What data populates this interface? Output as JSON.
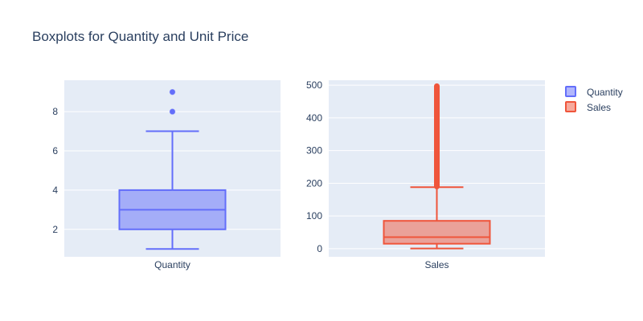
{
  "chart_data": {
    "title": "Boxplots for Quantity and Unit Price",
    "type": "box",
    "legend_position": "top-right",
    "grid": true,
    "colors": {
      "Quantity": "#636efa",
      "Sales": "#ef553b",
      "plot_bg": "#e5ecf6",
      "grid": "#ffffff"
    },
    "subplots": [
      {
        "name": "Quantity",
        "category": "Quantity",
        "ylim": [
          0.6,
          9.6
        ],
        "yticks": [
          2,
          4,
          6,
          8
        ],
        "box": {
          "min": 1,
          "q1": 2,
          "median": 3,
          "q3": 4,
          "max": 7
        },
        "outliers": [
          8,
          9
        ]
      },
      {
        "name": "Sales",
        "category": "Sales",
        "ylim": [
          -25,
          515
        ],
        "yticks": [
          0,
          100,
          200,
          300,
          400,
          500
        ],
        "box": {
          "min": 0.5,
          "q1": 15,
          "median": 35,
          "q3": 85,
          "max": 188
        },
        "outlier_range": [
          190,
          497
        ]
      }
    ],
    "legend": [
      "Quantity",
      "Sales"
    ]
  }
}
